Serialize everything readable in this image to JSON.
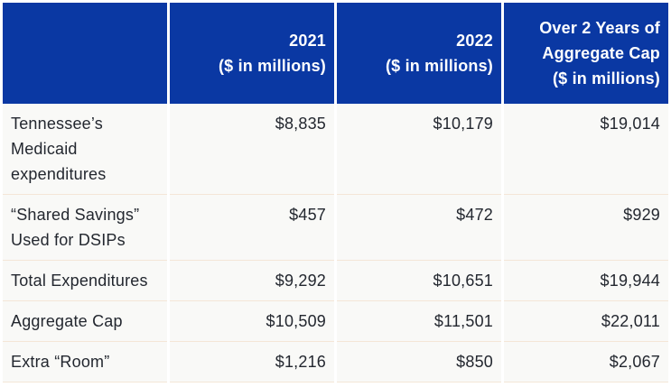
{
  "colors": {
    "header_bg": "#0a38a3",
    "header_text": "#ffffff",
    "body_bg": "#f9f9f7",
    "row_border": "#f4e6d7",
    "body_text": "#23272f",
    "page_bg": "#ffffff"
  },
  "table": {
    "columns": [
      {
        "label": ""
      },
      {
        "label": "2021\n($ in millions)"
      },
      {
        "label": "2022\n($ in millions)"
      },
      {
        "label": "Over 2 Years of\nAggregate Cap\n($ in millions)"
      }
    ],
    "rows": [
      {
        "label": "Tennessee’s Medicaid expenditures",
        "y2021": "$8,835",
        "y2022": "$10,179",
        "total": "$19,014"
      },
      {
        "label": "“Shared Savings” Used for DSIPs",
        "y2021": "$457",
        "y2022": "$472",
        "total": "$929"
      },
      {
        "label": "Total Expenditures",
        "y2021": "$9,292",
        "y2022": "$10,651",
        "total": "$19,944"
      },
      {
        "label": "Aggregate Cap",
        "y2021": "$10,509",
        "y2022": "$11,501",
        "total": "$22,011"
      },
      {
        "label": "Extra “Room”",
        "y2021": "$1,216",
        "y2022": "$850",
        "total": "$2,067"
      }
    ]
  },
  "chart_data": {
    "type": "table",
    "title": "",
    "columns": [
      "",
      "2021 ($ in millions)",
      "2022 ($ in millions)",
      "Over 2 Years of Aggregate Cap ($ in millions)"
    ],
    "rows": [
      [
        "Tennessee’s Medicaid expenditures",
        8835,
        10179,
        19014
      ],
      [
        "“Shared Savings” Used for DSIPs",
        457,
        472,
        929
      ],
      [
        "Total Expenditures",
        9292,
        10651,
        19944
      ],
      [
        "Aggregate Cap",
        10509,
        11501,
        22011
      ],
      [
        "Extra “Room”",
        1216,
        850,
        2067
      ]
    ]
  }
}
